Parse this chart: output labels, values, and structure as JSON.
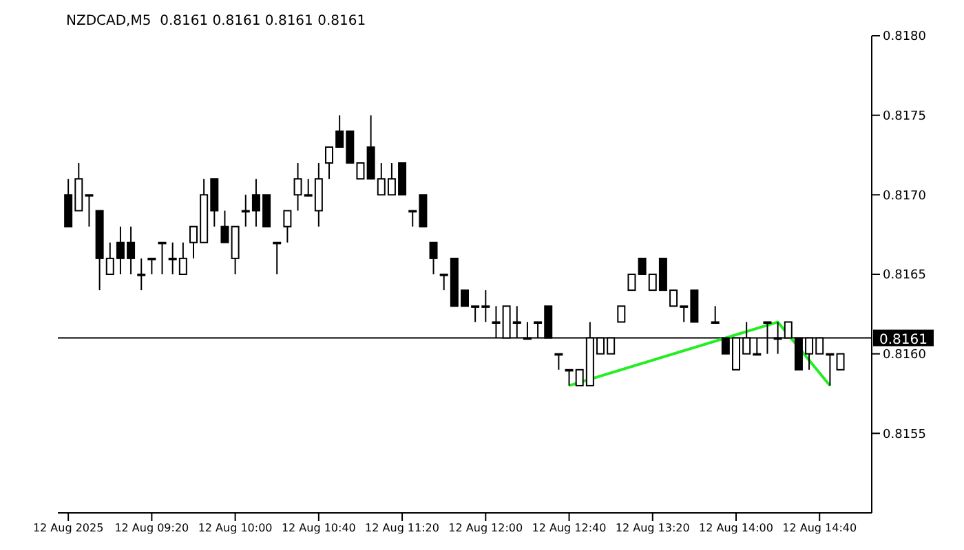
{
  "chart_data": {
    "type": "candlestick",
    "title": "NZDCAD,M5  0.8161 0.8161 0.8161 0.8161",
    "xlim": [
      "2025-08-12T08:35",
      "2025-08-12T15:05"
    ],
    "xticks": [
      {
        "value": "2025-08-12T08:40",
        "label": "12 Aug 2025"
      },
      {
        "value": "2025-08-12T09:20",
        "label": "12 Aug 09:20"
      },
      {
        "value": "2025-08-12T10:00",
        "label": "12 Aug 10:00"
      },
      {
        "value": "2025-08-12T10:40",
        "label": "12 Aug 10:40"
      },
      {
        "value": "2025-08-12T11:20",
        "label": "12 Aug 11:20"
      },
      {
        "value": "2025-08-12T12:00",
        "label": "12 Aug 12:00"
      },
      {
        "value": "2025-08-12T12:40",
        "label": "12 Aug 12:40"
      },
      {
        "value": "2025-08-12T13:20",
        "label": "12 Aug 13:20"
      },
      {
        "value": "2025-08-12T14:00",
        "label": "12 Aug 14:00"
      },
      {
        "value": "2025-08-12T14:40",
        "label": "12 Aug 14:40"
      }
    ],
    "ylim": [
      0.815,
      0.818
    ],
    "yticks": [
      {
        "value": 0.8155,
        "label": "0.8155"
      },
      {
        "value": 0.816,
        "label": "0.8160"
      },
      {
        "value": 0.8165,
        "label": "0.8165"
      },
      {
        "value": 0.817,
        "label": "0.8170"
      },
      {
        "value": 0.8175,
        "label": "0.8175"
      },
      {
        "value": 0.818,
        "label": "0.8180"
      }
    ],
    "ref_lines": [
      {
        "axis": "y",
        "value": 0.8161,
        "label": "0.8161",
        "color": "#000000"
      }
    ],
    "series": [
      {
        "type": "candlestick",
        "color": "#000000",
        "x": [
          "2025-08-12T08:40",
          "2025-08-12T08:45",
          "2025-08-12T08:50",
          "2025-08-12T08:55",
          "2025-08-12T09:00",
          "2025-08-12T09:05",
          "2025-08-12T09:10",
          "2025-08-12T09:15",
          "2025-08-12T09:20",
          "2025-08-12T09:25",
          "2025-08-12T09:30",
          "2025-08-12T09:35",
          "2025-08-12T09:40",
          "2025-08-12T09:45",
          "2025-08-12T09:50",
          "2025-08-12T09:55",
          "2025-08-12T10:00",
          "2025-08-12T10:05",
          "2025-08-12T10:10",
          "2025-08-12T10:15",
          "2025-08-12T10:20",
          "2025-08-12T10:25",
          "2025-08-12T10:30",
          "2025-08-12T10:35",
          "2025-08-12T10:40",
          "2025-08-12T10:45",
          "2025-08-12T10:50",
          "2025-08-12T10:55",
          "2025-08-12T11:00",
          "2025-08-12T11:05",
          "2025-08-12T11:10",
          "2025-08-12T11:15",
          "2025-08-12T11:20",
          "2025-08-12T11:25",
          "2025-08-12T11:30",
          "2025-08-12T11:35",
          "2025-08-12T11:40",
          "2025-08-12T11:45",
          "2025-08-12T11:50",
          "2025-08-12T11:55",
          "2025-08-12T12:00",
          "2025-08-12T12:05",
          "2025-08-12T12:10",
          "2025-08-12T12:15",
          "2025-08-12T12:20",
          "2025-08-12T12:25",
          "2025-08-12T12:30",
          "2025-08-12T12:35",
          "2025-08-12T12:40",
          "2025-08-12T12:45",
          "2025-08-12T12:50",
          "2025-08-12T12:55",
          "2025-08-12T13:00",
          "2025-08-12T13:05",
          "2025-08-12T13:10",
          "2025-08-12T13:15",
          "2025-08-12T13:20",
          "2025-08-12T13:25",
          "2025-08-12T13:30",
          "2025-08-12T13:35",
          "2025-08-12T13:40",
          "2025-08-12T13:50",
          "2025-08-12T13:55",
          "2025-08-12T14:00",
          "2025-08-12T14:05",
          "2025-08-12T14:10",
          "2025-08-12T14:15",
          "2025-08-12T14:20",
          "2025-08-12T14:25",
          "2025-08-12T14:30",
          "2025-08-12T14:35",
          "2025-08-12T14:40",
          "2025-08-12T14:45",
          "2025-08-12T14:50"
        ],
        "ohlc": [
          [
            0.817,
            0.8171,
            0.8168,
            0.8168
          ],
          [
            0.8169,
            0.8172,
            0.8169,
            0.8171
          ],
          [
            0.817,
            0.817,
            0.8168,
            0.817
          ],
          [
            0.8169,
            0.8169,
            0.8164,
            0.8166
          ],
          [
            0.8165,
            0.8167,
            0.8165,
            0.8166
          ],
          [
            0.8167,
            0.8168,
            0.8165,
            0.8166
          ],
          [
            0.8167,
            0.8168,
            0.8165,
            0.8166
          ],
          [
            0.8165,
            0.8166,
            0.8164,
            0.8165
          ],
          [
            0.8166,
            0.8166,
            0.8165,
            0.8166
          ],
          [
            0.8167,
            0.8167,
            0.8165,
            0.8167
          ],
          [
            0.8166,
            0.8167,
            0.8165,
            0.8166
          ],
          [
            0.8165,
            0.8167,
            0.8165,
            0.8166
          ],
          [
            0.8167,
            0.8168,
            0.8166,
            0.8168
          ],
          [
            0.8167,
            0.8171,
            0.8167,
            0.817
          ],
          [
            0.8171,
            0.8171,
            0.8168,
            0.8169
          ],
          [
            0.8168,
            0.8169,
            0.8167,
            0.8167
          ],
          [
            0.8166,
            0.8168,
            0.8165,
            0.8168
          ],
          [
            0.8169,
            0.817,
            0.8168,
            0.8169
          ],
          [
            0.817,
            0.8171,
            0.8168,
            0.8169
          ],
          [
            0.817,
            0.817,
            0.8168,
            0.8168
          ],
          [
            0.8167,
            0.8167,
            0.8165,
            0.8167
          ],
          [
            0.8168,
            0.8169,
            0.8167,
            0.8169
          ],
          [
            0.817,
            0.8172,
            0.8169,
            0.8171
          ],
          [
            0.817,
            0.8171,
            0.817,
            0.817
          ],
          [
            0.8169,
            0.8172,
            0.8168,
            0.8171
          ],
          [
            0.8172,
            0.8173,
            0.8171,
            0.8173
          ],
          [
            0.8174,
            0.8175,
            0.8173,
            0.8173
          ],
          [
            0.8174,
            0.8174,
            0.8172,
            0.8172
          ],
          [
            0.8171,
            0.8172,
            0.8171,
            0.8172
          ],
          [
            0.8173,
            0.8175,
            0.8171,
            0.8171
          ],
          [
            0.817,
            0.8172,
            0.817,
            0.8171
          ],
          [
            0.817,
            0.8172,
            0.817,
            0.8171
          ],
          [
            0.8172,
            0.8172,
            0.817,
            0.817
          ],
          [
            0.8169,
            0.8169,
            0.8168,
            0.8169
          ],
          [
            0.817,
            0.817,
            0.8168,
            0.8168
          ],
          [
            0.8167,
            0.8167,
            0.8165,
            0.8166
          ],
          [
            0.8165,
            0.8165,
            0.8164,
            0.8165
          ],
          [
            0.8166,
            0.8166,
            0.8163,
            0.8163
          ],
          [
            0.8164,
            0.8164,
            0.8163,
            0.8163
          ],
          [
            0.8163,
            0.8163,
            0.8162,
            0.8163
          ],
          [
            0.8163,
            0.8164,
            0.8162,
            0.8163
          ],
          [
            0.8162,
            0.8163,
            0.8161,
            0.8162
          ],
          [
            0.8161,
            0.8163,
            0.8161,
            0.8163
          ],
          [
            0.8162,
            0.8163,
            0.8161,
            0.8162
          ],
          [
            0.8161,
            0.8162,
            0.8161,
            0.8161
          ],
          [
            0.8162,
            0.8162,
            0.8161,
            0.8162
          ],
          [
            0.8163,
            0.8163,
            0.8161,
            0.8161
          ],
          [
            0.816,
            0.816,
            0.8159,
            0.816
          ],
          [
            0.8159,
            0.8159,
            0.8158,
            0.8159
          ],
          [
            0.8158,
            0.8159,
            0.8158,
            0.8159
          ],
          [
            0.8158,
            0.8162,
            0.8158,
            0.8161
          ],
          [
            0.816,
            0.8161,
            0.816,
            0.8161
          ],
          [
            0.816,
            0.8161,
            0.816,
            0.8161
          ],
          [
            0.8162,
            0.8163,
            0.8162,
            0.8163
          ],
          [
            0.8164,
            0.8165,
            0.8164,
            0.8165
          ],
          [
            0.8166,
            0.8166,
            0.8165,
            0.8165
          ],
          [
            0.8164,
            0.8165,
            0.8164,
            0.8165
          ],
          [
            0.8166,
            0.8166,
            0.8164,
            0.8164
          ],
          [
            0.8163,
            0.8164,
            0.8163,
            0.8164
          ],
          [
            0.8163,
            0.8163,
            0.8162,
            0.8163
          ],
          [
            0.8164,
            0.8164,
            0.8162,
            0.8162
          ],
          [
            0.8162,
            0.8163,
            0.8162,
            0.8162
          ],
          [
            0.8161,
            0.8161,
            0.816,
            0.816
          ],
          [
            0.8159,
            0.8161,
            0.8159,
            0.8161
          ],
          [
            0.816,
            0.8162,
            0.816,
            0.8161
          ],
          [
            0.816,
            0.8161,
            0.816,
            0.816
          ],
          [
            0.8162,
            0.8162,
            0.816,
            0.8162
          ],
          [
            0.8161,
            0.8162,
            0.816,
            0.8161
          ],
          [
            0.8161,
            0.8162,
            0.8161,
            0.8162
          ],
          [
            0.8161,
            0.8161,
            0.8159,
            0.8159
          ],
          [
            0.816,
            0.8161,
            0.8159,
            0.8161
          ],
          [
            0.816,
            0.8161,
            0.816,
            0.8161
          ],
          [
            0.816,
            0.816,
            0.8158,
            0.816
          ],
          [
            0.8159,
            0.816,
            0.8159,
            0.816
          ]
        ]
      },
      {
        "type": "line",
        "color": "#22ee22",
        "x": [
          "2025-08-12T12:40",
          "2025-08-12T14:20",
          "2025-08-12T14:45"
        ],
        "values": [
          0.8158,
          0.8162,
          0.8158
        ]
      }
    ]
  }
}
